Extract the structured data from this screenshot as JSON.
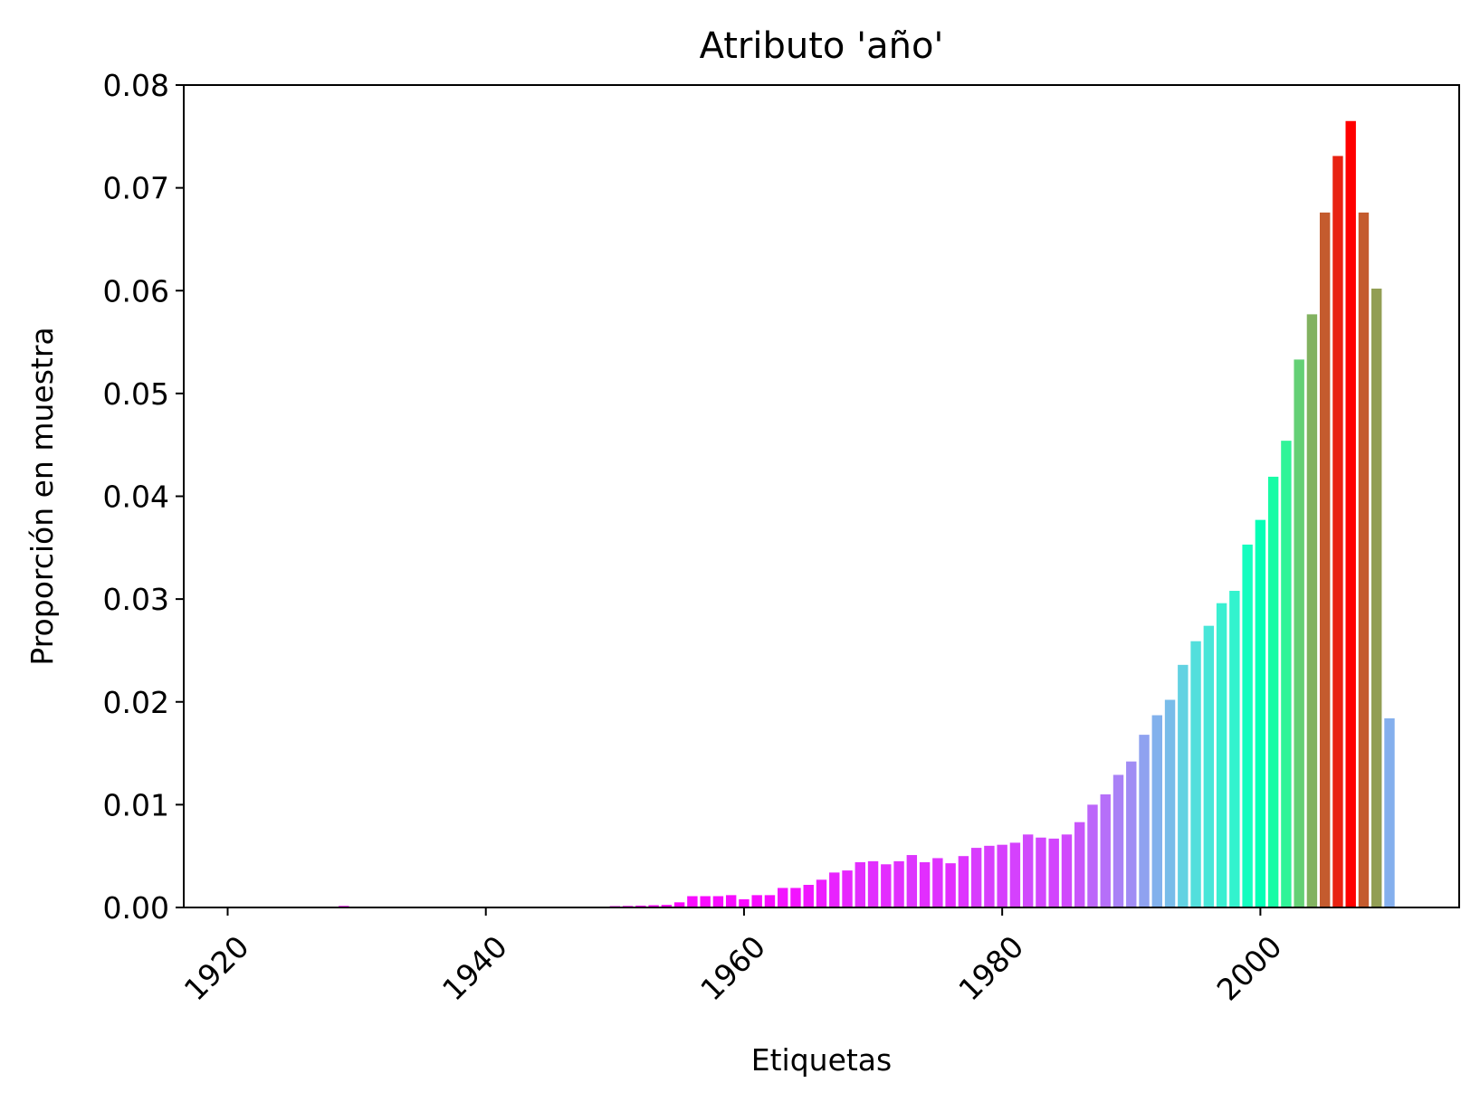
{
  "chart_data": {
    "type": "bar",
    "title": "Atributo 'año'",
    "xlabel": "Etiquetas",
    "ylabel": "Proporción en muestra",
    "xlim": [
      1916.6,
      2015.4
    ],
    "ylim": [
      0,
      0.08
    ],
    "xticks": [
      1920,
      1940,
      1960,
      1980,
      2000
    ],
    "xtick_labels": [
      "1920",
      "1940",
      "1960",
      "1980",
      "2000"
    ],
    "yticks": [
      0,
      0.01,
      0.02,
      0.03,
      0.04,
      0.05,
      0.06,
      0.07,
      0.08
    ],
    "ytick_labels": [
      "0.00",
      "0.01",
      "0.02",
      "0.03",
      "0.04",
      "0.05",
      "0.06",
      "0.07",
      "0.08"
    ],
    "grid": false,
    "colormap": "rainbow (color mapped to bar height)",
    "bar_width_years": 0.8,
    "x": [
      1922,
      1924,
      1925,
      1926,
      1927,
      1928,
      1929,
      1930,
      1931,
      1932,
      1933,
      1934,
      1935,
      1936,
      1937,
      1938,
      1939,
      1940,
      1941,
      1942,
      1943,
      1944,
      1945,
      1946,
      1947,
      1948,
      1949,
      1950,
      1951,
      1952,
      1953,
      1954,
      1955,
      1956,
      1957,
      1958,
      1959,
      1960,
      1961,
      1962,
      1963,
      1964,
      1965,
      1966,
      1967,
      1968,
      1969,
      1970,
      1971,
      1972,
      1973,
      1974,
      1975,
      1976,
      1977,
      1978,
      1979,
      1980,
      1981,
      1982,
      1983,
      1984,
      1985,
      1986,
      1987,
      1988,
      1989,
      1990,
      1991,
      1992,
      1993,
      1994,
      1995,
      1996,
      1997,
      1998,
      1999,
      2000,
      2001,
      2002,
      2003,
      2004,
      2005,
      2006,
      2007,
      2008,
      2009,
      2010
    ],
    "values": [
      2e-05,
      2e-05,
      3e-05,
      3e-05,
      3e-05,
      4e-05,
      0.00015,
      4e-05,
      3e-05,
      3e-05,
      3e-05,
      3e-05,
      3e-05,
      3e-05,
      3e-05,
      3e-05,
      3e-05,
      3e-05,
      3e-05,
      3e-05,
      3e-05,
      3e-05,
      3e-05,
      3e-05,
      4e-05,
      4e-05,
      5e-05,
      0.00013,
      0.00015,
      0.00018,
      0.00022,
      0.00025,
      0.0005,
      0.0011,
      0.0011,
      0.0011,
      0.0012,
      0.0008,
      0.0012,
      0.0012,
      0.0019,
      0.0019,
      0.0022,
      0.0027,
      0.0034,
      0.0036,
      0.0044,
      0.0045,
      0.0042,
      0.0045,
      0.0051,
      0.0044,
      0.0048,
      0.0043,
      0.005,
      0.0058,
      0.006,
      0.0061,
      0.0063,
      0.0071,
      0.0068,
      0.0067,
      0.0071,
      0.0083,
      0.01,
      0.011,
      0.0129,
      0.0142,
      0.0168,
      0.0187,
      0.0202,
      0.0236,
      0.0259,
      0.0274,
      0.0296,
      0.0308,
      0.0353,
      0.0377,
      0.0419,
      0.0454,
      0.0533,
      0.0577,
      0.0676,
      0.0731,
      0.0765,
      0.0676,
      0.0602,
      0.0184
    ]
  }
}
